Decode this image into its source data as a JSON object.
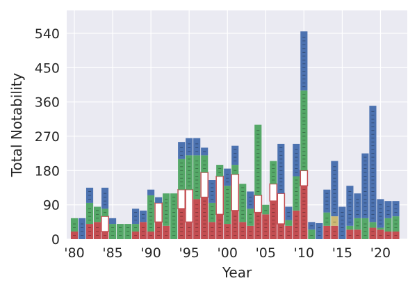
{
  "chart_data": {
    "type": "bar",
    "stacked": true,
    "xlabel": "Year",
    "ylabel": "Total Notability",
    "ylim": [
      0,
      600
    ],
    "xlim": [
      1979,
      2023.5
    ],
    "grid": true,
    "x_ticks": [
      {
        "value": 1980,
        "label": "'80"
      },
      {
        "value": 1985,
        "label": "'85"
      },
      {
        "value": 1990,
        "label": "'90"
      },
      {
        "value": 1995,
        "label": "'95"
      },
      {
        "value": 2000,
        "label": "'00"
      },
      {
        "value": 2005,
        "label": "'05"
      },
      {
        "value": 2010,
        "label": "'10"
      },
      {
        "value": 2015,
        "label": "'15"
      },
      {
        "value": 2020,
        "label": "'20"
      }
    ],
    "y_ticks": [
      0,
      90,
      180,
      270,
      360,
      450,
      540
    ],
    "colors": {
      "blue": "#4c72b0",
      "green": "#55a868",
      "red": "#c44e52",
      "tan": "#ccb974",
      "background": "#eaeaf2",
      "grid": "#ffffff"
    },
    "years": [
      1980,
      1981,
      1982,
      1983,
      1984,
      1985,
      1986,
      1987,
      1988,
      1989,
      1990,
      1991,
      1992,
      1993,
      1994,
      1995,
      1996,
      1997,
      1998,
      1999,
      2000,
      2001,
      2002,
      2003,
      2004,
      2005,
      2006,
      2007,
      2008,
      2009,
      2010,
      2011,
      2012,
      2013,
      2014,
      2015,
      2016,
      2017,
      2018,
      2019,
      2020,
      2021,
      2022
    ],
    "series": [
      {
        "color_key": "red",
        "values": [
          20,
          0,
          40,
          45,
          20,
          0,
          0,
          0,
          20,
          45,
          20,
          45,
          35,
          0,
          80,
          45,
          105,
          110,
          45,
          65,
          40,
          75,
          45,
          35,
          70,
          65,
          100,
          40,
          35,
          75,
          140,
          0,
          0,
          35,
          35,
          0,
          25,
          25,
          0,
          30,
          25,
          20,
          20
        ]
      },
      {
        "color_key": "white",
        "values": [
          0,
          0,
          0,
          0,
          40,
          0,
          0,
          0,
          0,
          0,
          0,
          50,
          0,
          0,
          50,
          85,
          0,
          65,
          0,
          100,
          0,
          95,
          0,
          0,
          45,
          0,
          45,
          80,
          0,
          0,
          40,
          0,
          0,
          0,
          0,
          0,
          0,
          0,
          0,
          0,
          0,
          0,
          0
        ]
      },
      {
        "color_key": "green",
        "values": [
          35,
          0,
          55,
          40,
          20,
          40,
          40,
          40,
          20,
          0,
          95,
          0,
          85,
          120,
          80,
          90,
          115,
          45,
          50,
          30,
          100,
          25,
          100,
          45,
          185,
          25,
          60,
          0,
          15,
          90,
          210,
          25,
          0,
          35,
          0,
          0,
          10,
          30,
          55,
          15,
          5,
          35,
          40
        ]
      },
      {
        "color_key": "tan",
        "values": [
          0,
          0,
          0,
          0,
          0,
          0,
          0,
          0,
          0,
          0,
          0,
          0,
          0,
          0,
          0,
          0,
          0,
          0,
          0,
          0,
          0,
          0,
          0,
          0,
          0,
          0,
          0,
          0,
          0,
          0,
          0,
          0,
          0,
          0,
          25,
          0,
          0,
          0,
          0,
          0,
          0,
          0,
          0
        ]
      },
      {
        "color_key": "blue",
        "values": [
          0,
          55,
          40,
          0,
          55,
          15,
          0,
          0,
          40,
          30,
          15,
          15,
          0,
          0,
          45,
          45,
          45,
          20,
          60,
          0,
          45,
          50,
          0,
          45,
          0,
          0,
          0,
          130,
          35,
          85,
          155,
          20,
          42,
          60,
          145,
          85,
          105,
          65,
          170,
          305,
          75,
          45,
          40
        ]
      }
    ]
  }
}
